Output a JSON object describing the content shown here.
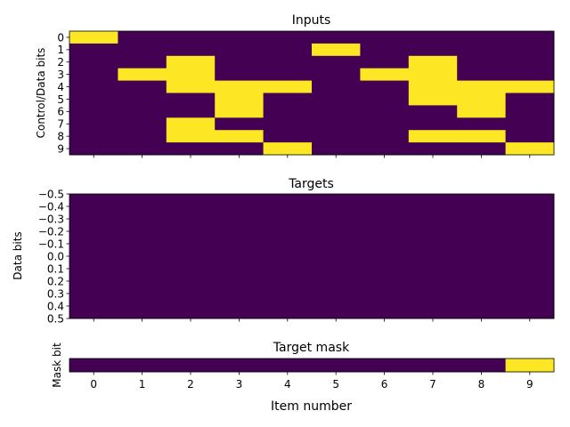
{
  "chart_data": [
    {
      "type": "heatmap",
      "title": "Inputs",
      "ylabel": "Control/Data bits",
      "xlabel": "",
      "x_ticks": [
        0,
        1,
        2,
        3,
        4,
        5,
        6,
        7,
        8,
        9
      ],
      "y_tick_labels": [
        "0",
        "1",
        "2",
        "3",
        "4",
        "5",
        "6",
        "7",
        "8",
        "9"
      ],
      "show_x_tick_labels": false,
      "colors": {
        "0": "#440154",
        "1": "#fde725"
      },
      "rows": [
        [
          1,
          0,
          0,
          0,
          0,
          0,
          0,
          0,
          0,
          0
        ],
        [
          0,
          0,
          0,
          0,
          0,
          1,
          0,
          0,
          0,
          0
        ],
        [
          0,
          0,
          1,
          0,
          0,
          0,
          0,
          1,
          0,
          0
        ],
        [
          0,
          1,
          1,
          0,
          0,
          0,
          1,
          1,
          0,
          0
        ],
        [
          0,
          0,
          1,
          1,
          1,
          0,
          0,
          1,
          1,
          1
        ],
        [
          0,
          0,
          0,
          1,
          0,
          0,
          0,
          1,
          1,
          0
        ],
        [
          0,
          0,
          0,
          1,
          0,
          0,
          0,
          0,
          1,
          0
        ],
        [
          0,
          0,
          1,
          0,
          0,
          0,
          0,
          0,
          0,
          0
        ],
        [
          0,
          0,
          1,
          1,
          0,
          0,
          0,
          1,
          1,
          0
        ],
        [
          0,
          0,
          0,
          0,
          1,
          0,
          0,
          0,
          0,
          1
        ]
      ]
    },
    {
      "type": "heatmap",
      "title": "Targets",
      "ylabel": "Data bits",
      "xlabel": "",
      "x_ticks": [
        0,
        1,
        2,
        3,
        4,
        5,
        6,
        7,
        8,
        9
      ],
      "y_tick_labels": [
        "−0.5",
        "−0.4",
        "−0.3",
        "−0.2",
        "−0.1",
        "0.0",
        "0.1",
        "0.2",
        "0.3",
        "0.4",
        "0.5"
      ],
      "ylim": [
        -0.5,
        0.5
      ],
      "show_x_tick_labels": false,
      "colors": {
        "0": "#440154",
        "1": "#fde725"
      },
      "rows": [
        [
          0,
          0,
          0,
          0,
          0,
          0,
          0,
          0,
          0,
          0
        ]
      ]
    },
    {
      "type": "heatmap",
      "title": "Target mask",
      "ylabel": "Mask bit",
      "xlabel": "Item number",
      "x_ticks": [
        0,
        1,
        2,
        3,
        4,
        5,
        6,
        7,
        8,
        9
      ],
      "x_tick_labels": [
        "0",
        "1",
        "2",
        "3",
        "4",
        "5",
        "6",
        "7",
        "8",
        "9"
      ],
      "y_tick_labels": [],
      "show_x_tick_labels": true,
      "colors": {
        "0": "#440154",
        "1": "#fde725"
      },
      "rows": [
        [
          0,
          0,
          0,
          0,
          0,
          0,
          0,
          0,
          0,
          1
        ]
      ]
    }
  ]
}
